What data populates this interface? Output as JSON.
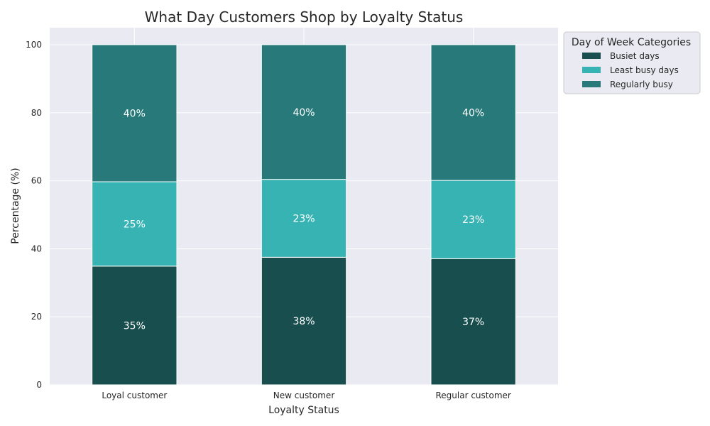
{
  "chart_data": {
    "type": "bar",
    "stacked": true,
    "title": "What Day Customers Shop by Loyalty Status",
    "xlabel": "Loyalty Status",
    "ylabel": "Percentage (%)",
    "ylim": [
      0,
      105
    ],
    "yticks": [
      "0",
      "20",
      "40",
      "60",
      "80",
      "100"
    ],
    "grid": true,
    "categories": [
      "Loyal customer",
      "New customer",
      "Regular customer"
    ],
    "series": [
      {
        "name": "Busiet days",
        "color": "#184e4e",
        "values": [
          34.9,
          37.5,
          37.1
        ],
        "labels": [
          "35%",
          "38%",
          "37%"
        ]
      },
      {
        "name": "Least busy days",
        "color": "#38b3b3",
        "values": [
          24.8,
          22.9,
          23.0
        ],
        "labels": [
          "25%",
          "23%",
          "23%"
        ]
      },
      {
        "name": "Regularly busy",
        "color": "#287a7a",
        "values": [
          40.3,
          39.6,
          39.9
        ],
        "labels": [
          "40%",
          "40%",
          "40%"
        ]
      }
    ],
    "legend": {
      "title": "Day of Week Categories",
      "position": "outside-top-right"
    }
  }
}
